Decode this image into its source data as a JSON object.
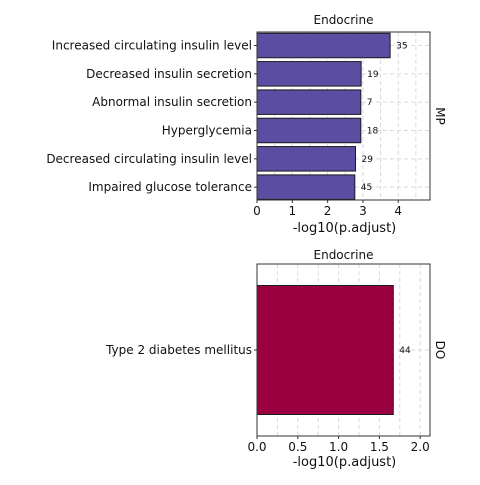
{
  "chart_data": [
    {
      "type": "bar",
      "orientation": "horizontal",
      "title": "Endocrine",
      "facet_label": "MP",
      "xlabel": "-log10(p.adjust)",
      "xlim": [
        0,
        4.9
      ],
      "xticks": [
        "0",
        "1",
        "2",
        "3",
        "4"
      ],
      "xtick_values": [
        0,
        1,
        2,
        3,
        4
      ],
      "grid": true,
      "bar_color": "#5b4ea2",
      "categories": [
        "Increased circulating insulin level",
        "Decreased insulin secretion",
        "Abnormal insulin secretion",
        "Hyperglycemia",
        "Decreased circulating insulin level",
        "Impaired glucose tolerance"
      ],
      "values": [
        3.77,
        2.95,
        2.94,
        2.94,
        2.79,
        2.77
      ],
      "labels": [
        "35",
        "19",
        "7",
        "18",
        "29",
        "45"
      ]
    },
    {
      "type": "bar",
      "orientation": "horizontal",
      "title": "Endocrine",
      "facet_label": "DO",
      "xlabel": "-log10(p.adjust)",
      "xlim": [
        0,
        2.12
      ],
      "xticks": [
        "0.0",
        "0.5",
        "1.0",
        "1.5",
        "2.0"
      ],
      "xtick_values": [
        0,
        0.5,
        1.0,
        1.5,
        2.0
      ],
      "grid": true,
      "bar_color": "#9b0041",
      "categories": [
        "Type 2 diabetes mellitus"
      ],
      "values": [
        1.67
      ],
      "labels": [
        "44"
      ]
    }
  ]
}
